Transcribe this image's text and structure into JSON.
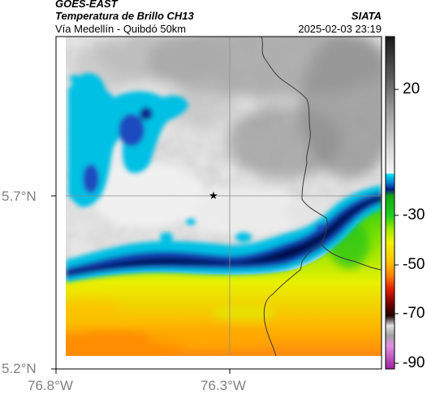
{
  "header": {
    "satellite": "GOES-EAST",
    "product": "Temperatura de Brillo CH13",
    "route": "Vía Medellín - Quibdó 50km",
    "organization": "SIATA",
    "datetime": "2025-02-03 23:19"
  },
  "map": {
    "lat_ticks": [
      "5.7°N",
      "5.2°N"
    ],
    "lon_ticks": [
      "76.8°W",
      "76.3°W"
    ],
    "marker": "star-icon"
  },
  "colorbar": {
    "ticks": [
      "20",
      "-30",
      "-50",
      "-70",
      "-90"
    ],
    "range": [
      -95,
      40
    ],
    "colors": {
      "warm_gray_dark": "#303030",
      "warm_gray_light": "#e8e8e8",
      "cyan": "#00c8e8",
      "blue": "#0a2a9a",
      "navy": "#05104a",
      "green": "#18c81a",
      "yellow": "#f0f000",
      "orange": "#ff8000",
      "red": "#d01000",
      "dark_red": "#300000",
      "magenta": "#b040b0"
    }
  }
}
